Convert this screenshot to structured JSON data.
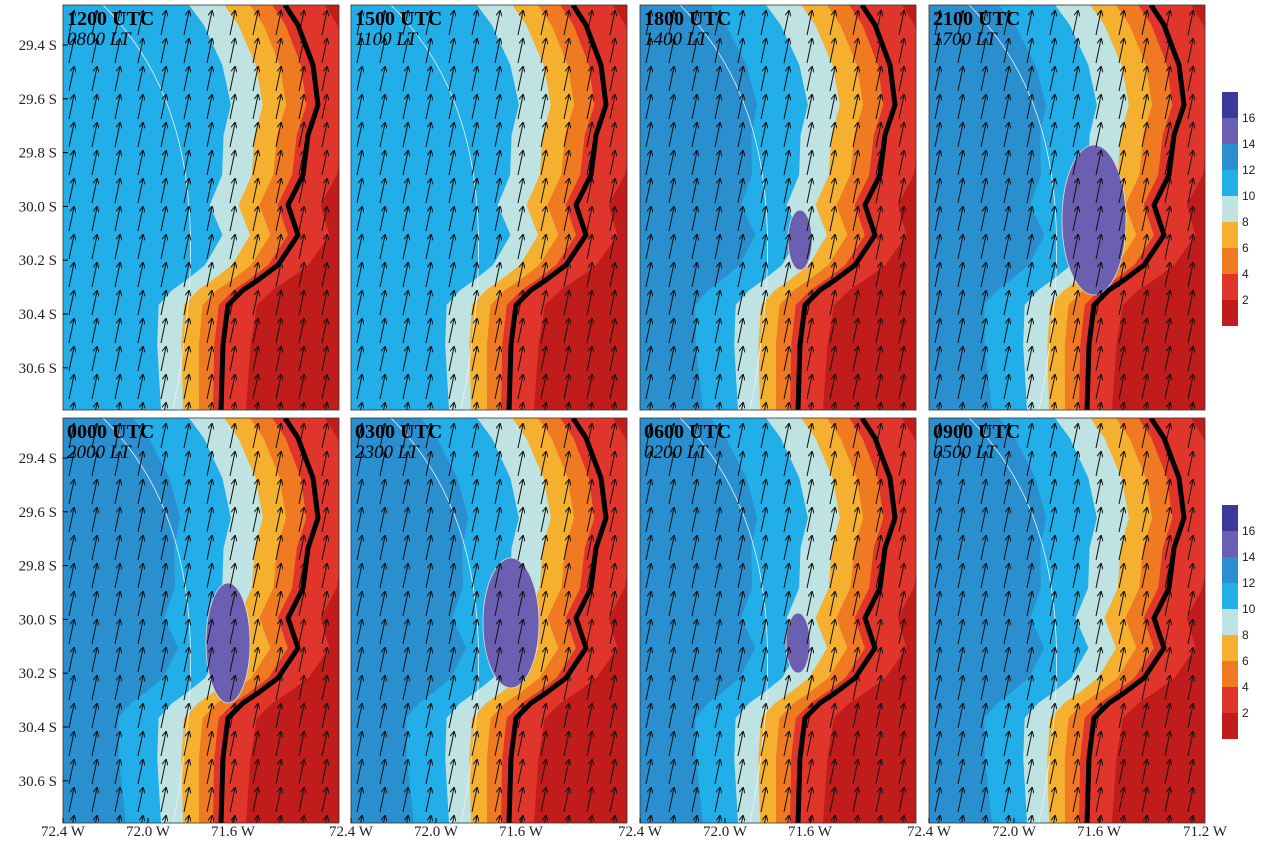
{
  "panels": [
    {
      "utc": "1200 UTC",
      "lt": "0800 LT"
    },
    {
      "utc": "1500 UTC",
      "lt": "1100 LT"
    },
    {
      "utc": "1800 UTC",
      "lt": "1400 LT"
    },
    {
      "utc": "2100 UTC",
      "lt": "1700 LT"
    },
    {
      "utc": "0000 UTC",
      "lt": "2000 LT"
    },
    {
      "utc": "0300 UTC",
      "lt": "2300 LT"
    },
    {
      "utc": "0600 UTC",
      "lt": "0200 LT"
    },
    {
      "utc": "0900 UTC",
      "lt": "0500 LT"
    }
  ],
  "y_axis": {
    "labels": [
      "29.4 S",
      "29.6 S",
      "29.8 S",
      "30.0 S",
      "30.2 S",
      "30.4 S",
      "30.6 S"
    ]
  },
  "x_axis": {
    "labels": [
      "72.4 W",
      "72.0 W",
      "71.6 W"
    ],
    "last_label": "71.2 W"
  },
  "colorbar": {
    "labels": [
      "16",
      "14",
      "12",
      "10",
      "8",
      "6",
      "4",
      "2"
    ]
  }
}
